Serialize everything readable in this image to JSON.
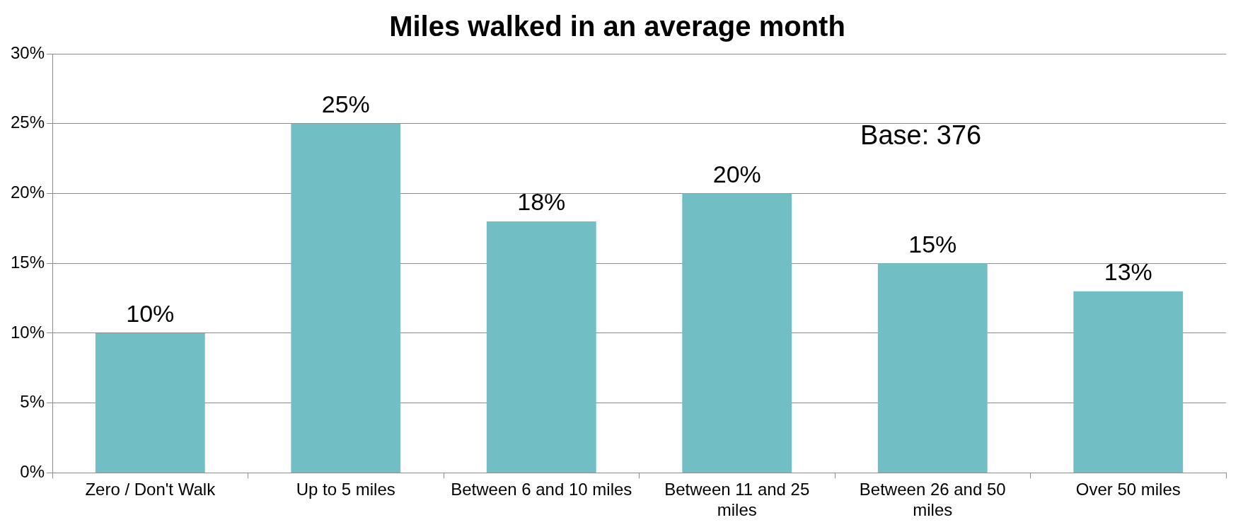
{
  "chart_data": {
    "type": "bar",
    "title": "Miles walked in an average month",
    "categories": [
      "Zero / Don't Walk",
      "Up to 5 miles",
      "Between 6 and 10 miles",
      "Between 11 and 25 miles",
      "Between 26 and 50 miles",
      "Over 50 miles"
    ],
    "values": [
      10,
      25,
      18,
      20,
      15,
      13
    ],
    "color": "#72bec5",
    "ylim": [
      0,
      30
    ],
    "yticks": [
      {
        "value": 0,
        "label": "0%"
      },
      {
        "value": 5,
        "label": "5%"
      },
      {
        "value": 10,
        "label": "10%"
      },
      {
        "value": 15,
        "label": "15%"
      },
      {
        "value": 20,
        "label": "20%"
      },
      {
        "value": 25,
        "label": "25%"
      },
      {
        "value": 30,
        "label": "30%"
      }
    ],
    "grid": "y",
    "data_labels": true,
    "value_labels": [
      "10%",
      "25%",
      "18%",
      "20%",
      "15%",
      "13%"
    ],
    "annotations": [
      "Base: 376"
    ]
  }
}
